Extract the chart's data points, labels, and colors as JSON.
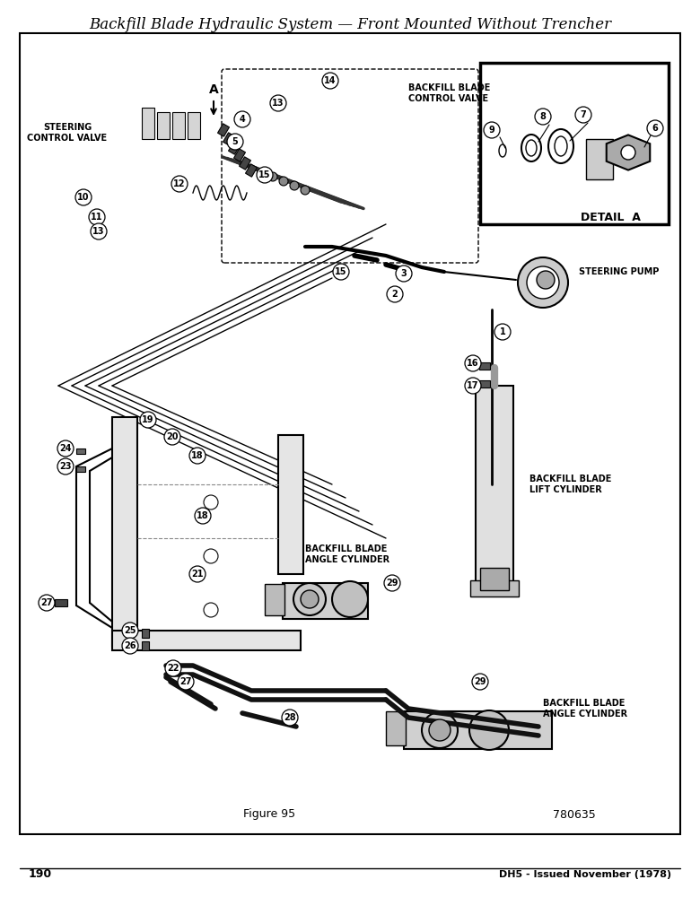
{
  "title": "Backfill Blade Hydraulic System — Front Mounted Without Trencher",
  "title_fontsize": 12,
  "figure_caption": "Figure 95",
  "figure_number": "780635",
  "page_number": "190",
  "publisher": "DH5 - Issued November (1978)",
  "bg_color": "#ffffff",
  "labels": {
    "steering_control_valve": "STEERING\nCONTROL VALVE",
    "backfill_blade_control_valve": "BACKFILL BLADE\nCONTROL VALVE",
    "steering_pump": "STEERING PUMP",
    "backfill_blade_lift_cylinder": "BACKFILL BLADE\nLIFT CYLINDER",
    "backfill_blade_angle_cylinder_1": "BACKFILL BLADE\nANGLE CYLINDER",
    "backfill_blade_angle_cylinder_2": "BACKFILL BLADE\nANGLE CYLINDER",
    "detail_a": "DETAIL  A"
  }
}
